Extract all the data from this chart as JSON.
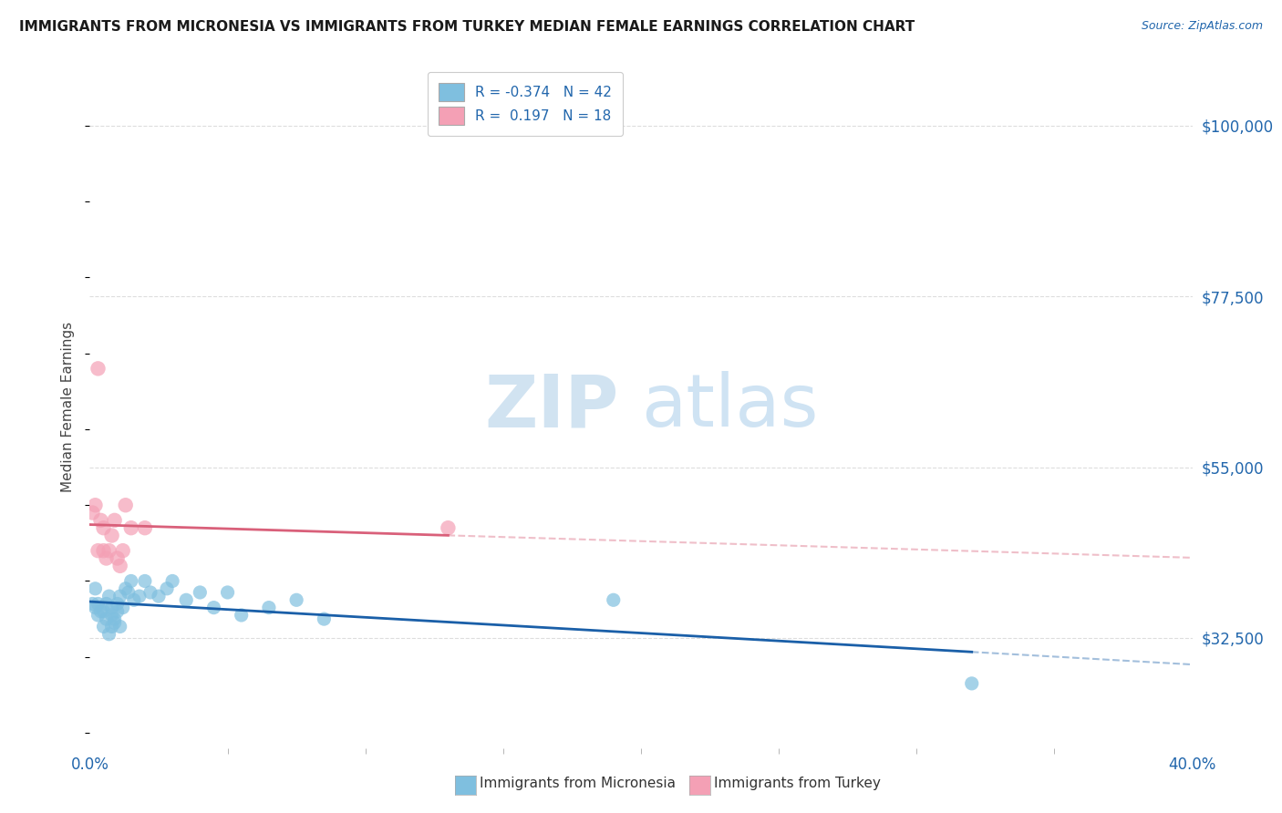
{
  "title": "IMMIGRANTS FROM MICRONESIA VS IMMIGRANTS FROM TURKEY MEDIAN FEMALE EARNINGS CORRELATION CHART",
  "source_text": "Source: ZipAtlas.com",
  "ylabel": "Median Female Earnings",
  "xmin": 0.0,
  "xmax": 0.4,
  "ymin": 18000,
  "ymax": 108000,
  "color_blue": "#7fbfdf",
  "color_pink": "#f4a0b5",
  "color_blue_line": "#1a5fa8",
  "color_pink_line": "#d9607a",
  "color_dashed": "#e0b0bb",
  "watermark_color": "#cce0f0",
  "background_color": "#ffffff",
  "grid_color": "#dddddd",
  "micronesia_x": [
    0.001,
    0.002,
    0.002,
    0.003,
    0.003,
    0.004,
    0.005,
    0.005,
    0.006,
    0.006,
    0.007,
    0.007,
    0.008,
    0.008,
    0.009,
    0.009,
    0.01,
    0.01,
    0.011,
    0.011,
    0.012,
    0.013,
    0.014,
    0.015,
    0.016,
    0.018,
    0.02,
    0.022,
    0.025,
    0.028,
    0.03,
    0.035,
    0.04,
    0.045,
    0.05,
    0.055,
    0.065,
    0.075,
    0.085,
    0.19,
    0.32,
    0.008
  ],
  "micronesia_y": [
    37000,
    36500,
    39000,
    37000,
    35500,
    36000,
    34000,
    36000,
    35000,
    37000,
    33000,
    38000,
    36500,
    35500,
    34500,
    35000,
    37000,
    36000,
    38000,
    34000,
    36500,
    39000,
    38500,
    40000,
    37500,
    38000,
    40000,
    38500,
    38000,
    39000,
    40000,
    37500,
    38500,
    36500,
    38500,
    35500,
    36500,
    37500,
    35000,
    37500,
    26500,
    34000
  ],
  "turkey_x": [
    0.001,
    0.002,
    0.003,
    0.003,
    0.004,
    0.005,
    0.005,
    0.006,
    0.007,
    0.008,
    0.009,
    0.01,
    0.011,
    0.012,
    0.013,
    0.015,
    0.02,
    0.13
  ],
  "turkey_y": [
    49000,
    50000,
    44000,
    68000,
    48000,
    47000,
    44000,
    43000,
    44000,
    46000,
    48000,
    43000,
    42000,
    44000,
    50000,
    47000,
    47000,
    47000
  ]
}
